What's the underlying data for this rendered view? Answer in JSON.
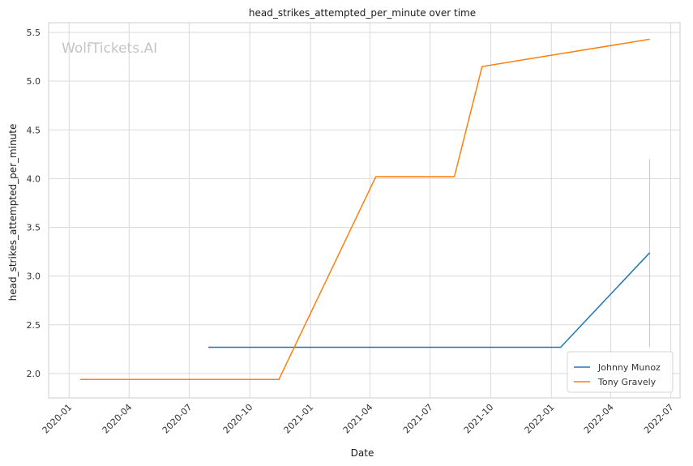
{
  "chart_data": {
    "type": "line",
    "title": "head_strikes_attempted_per_minute over time",
    "xlabel": "Date",
    "ylabel": "head_strikes_attempted_per_minute",
    "watermark": "WolfTickets.AI",
    "x_ticks": [
      "2020-01",
      "2020-04",
      "2020-07",
      "2020-10",
      "2021-01",
      "2021-04",
      "2021-07",
      "2021-10",
      "2022-01",
      "2022-04",
      "2022-07"
    ],
    "y_ticks": [
      "2.0",
      "2.5",
      "3.0",
      "3.5",
      "4.0",
      "4.5",
      "5.0",
      "5.5"
    ],
    "xlim": [
      "2019-12-01",
      "2022-07-15"
    ],
    "ylim": [
      1.75,
      5.6
    ],
    "grid": true,
    "legend_position": "bottom-right",
    "series": [
      {
        "name": "Johnny Munoz",
        "color": "#1f77b4",
        "points": [
          {
            "x": "2020-07-30",
            "y": 2.27
          },
          {
            "x": "2022-01-15",
            "y": 2.27
          },
          {
            "x": "2022-05-30",
            "y": 3.24
          }
        ]
      },
      {
        "name": "Tony Gravely",
        "color": "#ff7f0e",
        "points": [
          {
            "x": "2020-01-18",
            "y": 1.94
          },
          {
            "x": "2020-11-14",
            "y": 1.94
          },
          {
            "x": "2021-04-10",
            "y": 4.02
          },
          {
            "x": "2021-08-07",
            "y": 4.02
          },
          {
            "x": "2021-09-18",
            "y": 5.15
          },
          {
            "x": "2022-05-30",
            "y": 5.43
          }
        ]
      }
    ],
    "annotations": [
      {
        "type": "vertical-band",
        "x": "2022-05-30",
        "y_range": [
          2.27,
          4.2
        ],
        "color": "#b0d0d0"
      }
    ]
  }
}
